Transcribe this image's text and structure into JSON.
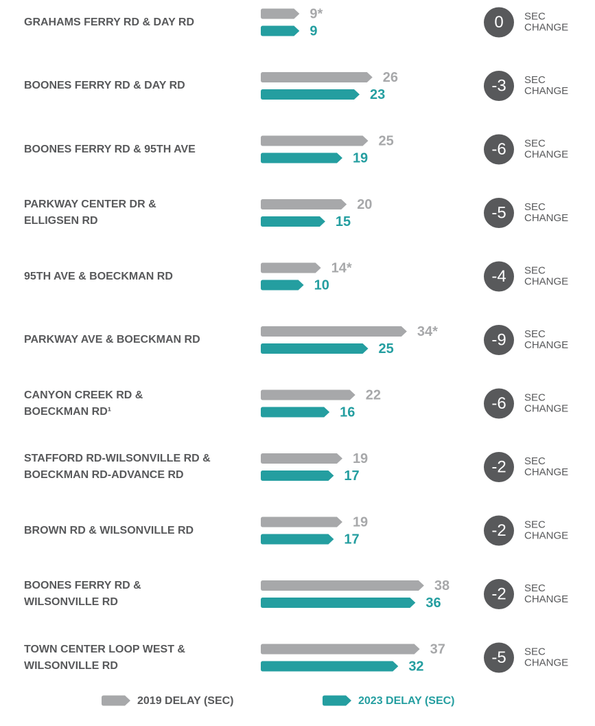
{
  "chart_data": {
    "type": "bar",
    "categories": [
      "GRAHAMS FERRY RD & DAY RD",
      "BOONES FERRY RD & DAY RD",
      "BOONES FERRY RD & 95TH AVE",
      "PARKWAY CENTER DR &\nELLIGSEN RD",
      "95TH AVE & BOECKMAN RD",
      "PARKWAY AVE & BOECKMAN RD",
      "CANYON CREEK RD &\nBOECKMAN RD¹",
      "STAFFORD RD-WILSONVILLE RD &\nBOECKMAN RD-ADVANCE RD",
      "BROWN RD & WILSONVILLE RD",
      "BOONES FERRY RD &\nWILSONVILLE RD",
      "TOWN CENTER LOOP WEST &\nWILSONVILLE RD"
    ],
    "series": [
      {
        "name": "2019 DELAY (SEC)",
        "color": "#a7a8aa",
        "values": [
          9,
          26,
          25,
          20,
          14,
          34,
          22,
          19,
          19,
          38,
          37
        ],
        "value_labels": [
          "9*",
          "26",
          "25",
          "20",
          "14*",
          "34*",
          "22",
          "19",
          "19",
          "38",
          "37"
        ]
      },
      {
        "name": "2023 DELAY (SEC)",
        "color": "#249ea0",
        "values": [
          9,
          23,
          19,
          15,
          10,
          25,
          16,
          17,
          17,
          36,
          32
        ]
      }
    ],
    "changes": [
      0,
      -3,
      -6,
      -5,
      -4,
      -9,
      -6,
      -2,
      -2,
      -2,
      -5
    ],
    "change_unit": [
      "SEC",
      "CHANGE"
    ],
    "change_color": "#58595b"
  }
}
